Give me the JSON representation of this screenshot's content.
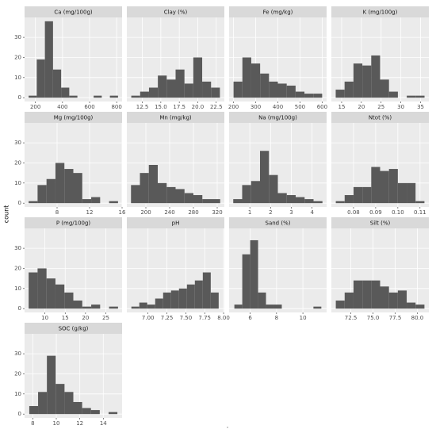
{
  "chart_data": {
    "type": "histogram",
    "y_label": "count",
    "x_label": ".",
    "color": "#595959",
    "grid": true,
    "ylim": [
      -1.9,
      39.9
    ],
    "yticks": [
      0,
      10,
      20,
      30
    ],
    "facets": [
      {
        "title": "Ca (mg/100g)",
        "bins": [
          150,
          210,
          270,
          330,
          390,
          450,
          510,
          570,
          630,
          690,
          750,
          810
        ],
        "counts": [
          1,
          19,
          38,
          14,
          5,
          1,
          0,
          0,
          1,
          0,
          1
        ],
        "xlim": [
          120,
          840
        ],
        "xticks": [
          200,
          400,
          600,
          800
        ]
      },
      {
        "title": "Clay (%)",
        "bins": [
          11.0,
          12.2,
          13.4,
          14.6,
          15.8,
          17.0,
          18.2,
          19.4,
          20.6,
          21.8,
          23.0
        ],
        "counts": [
          1,
          3,
          5,
          11,
          9,
          14,
          7,
          20,
          8,
          5
        ],
        "xlim": [
          10.4,
          23.6
        ],
        "xticks": [
          12.5,
          {
            "value": 15,
            "label": "15.0"
          },
          17.5,
          {
            "value": 20,
            "label": "20.0"
          },
          22.5
        ]
      },
      {
        "title": "Fe (mg/kg)",
        "bins": [
          200,
          240,
          280,
          320,
          360,
          400,
          440,
          480,
          520,
          560,
          600
        ],
        "counts": [
          8,
          20,
          17,
          12,
          8,
          7,
          6,
          3,
          2,
          2
        ],
        "xlim": [
          180,
          620
        ],
        "xticks": [
          200,
          300,
          400,
          500,
          600
        ]
      },
      {
        "title": "K (mg/100g)",
        "bins": [
          13.5,
          15.75,
          18.0,
          20.25,
          22.5,
          24.75,
          27.0,
          29.25,
          31.5,
          33.75,
          36.0
        ],
        "counts": [
          4,
          8,
          17,
          16,
          21,
          9,
          3,
          0,
          1,
          1
        ],
        "xlim": [
          12.4,
          37.1
        ],
        "xticks": [
          15,
          20,
          25,
          30,
          35
        ]
      },
      {
        "title": "Mg (mg/100g)",
        "bins": [
          4.5,
          5.6,
          6.7,
          7.8,
          8.9,
          10.0,
          11.1,
          12.2,
          13.3,
          14.4,
          15.5
        ],
        "counts": [
          1,
          9,
          12,
          20,
          17,
          15,
          2,
          3,
          0,
          1
        ],
        "xlim": [
          4.0,
          16.0
        ],
        "xticks": [
          8,
          12,
          16
        ]
      },
      {
        "title": "Mn (mg/kg)",
        "bins": [
          175,
          190,
          205,
          220,
          235,
          250,
          265,
          280,
          295,
          310,
          325
        ],
        "counts": [
          9,
          15,
          19,
          10,
          8,
          7,
          5,
          4,
          2,
          2
        ],
        "xlim": [
          168,
          332
        ],
        "xticks": [
          200,
          240,
          280,
          320
        ]
      },
      {
        "title": "Na (mg/100g)",
        "bins": [
          0.2,
          0.63,
          1.06,
          1.49,
          1.92,
          2.35,
          2.78,
          3.21,
          3.64,
          4.07,
          4.5
        ],
        "counts": [
          2,
          9,
          11,
          26,
          14,
          5,
          4,
          3,
          2,
          1
        ],
        "xlim": [
          0.0,
          4.7
        ],
        "xticks": [
          1,
          2,
          3,
          4
        ]
      },
      {
        "title": "Ntot (%)",
        "bins": [
          0.072,
          0.076,
          0.08,
          0.084,
          0.088,
          0.092,
          0.096,
          0.1,
          0.104,
          0.108,
          0.112
        ],
        "counts": [
          1,
          4,
          8,
          8,
          18,
          16,
          17,
          10,
          10,
          1
        ],
        "xlim": [
          0.07,
          0.114
        ],
        "xticks": [
          0.08,
          0.09,
          {
            "value": 0.1,
            "label": "0.10"
          },
          0.11
        ]
      },
      {
        "title": "P (mg/100g)",
        "bins": [
          6.0,
          8.2,
          10.4,
          12.6,
          14.8,
          17.0,
          19.2,
          21.4,
          23.6,
          25.8,
          28.0
        ],
        "counts": [
          18,
          20,
          15,
          12,
          8,
          4,
          1,
          2,
          0,
          1
        ],
        "xlim": [
          5.0,
          29.0
        ],
        "xticks": [
          10,
          15,
          20,
          25
        ]
      },
      {
        "title": "pH",
        "bins": [
          6.78,
          6.885,
          6.99,
          7.095,
          7.2,
          7.305,
          7.41,
          7.515,
          7.62,
          7.725,
          7.83,
          7.935
        ],
        "counts": [
          1,
          3,
          2,
          5,
          8,
          9,
          10,
          12,
          14,
          18,
          8
        ],
        "xlim": [
          6.72,
          8.01
        ],
        "xticks": [
          {
            "value": 7,
            "label": "7.00"
          },
          7.25,
          {
            "value": 7.5,
            "label": "7.50"
          },
          7.75,
          {
            "value": 8,
            "label": "8.00"
          }
        ]
      },
      {
        "title": "Sand (%)",
        "bins": [
          4.8,
          5.4,
          6.0,
          6.6,
          7.2,
          7.8,
          8.4,
          9.0,
          9.6,
          10.2,
          10.8,
          11.4
        ],
        "counts": [
          2,
          27,
          34,
          8,
          2,
          2,
          0,
          0,
          0,
          0,
          1
        ],
        "xlim": [
          4.4,
          11.8
        ],
        "xticks": [
          6,
          8,
          10
        ]
      },
      {
        "title": "Silt (%)",
        "bins": [
          70.8,
          71.8,
          72.8,
          73.8,
          74.8,
          75.8,
          76.8,
          77.8,
          78.8,
          79.8,
          80.8
        ],
        "counts": [
          4,
          8,
          14,
          14,
          14,
          11,
          8,
          9,
          3,
          2
        ],
        "xlim": [
          70.3,
          81.3
        ],
        "xticks": [
          72.5,
          {
            "value": 75,
            "label": "75.0"
          },
          77.5,
          {
            "value": 80,
            "label": "80.0"
          }
        ]
      },
      {
        "title": "SOC (g/kg)",
        "bins": [
          7.7,
          8.45,
          9.2,
          9.95,
          10.7,
          11.45,
          12.2,
          12.95,
          13.7,
          14.45,
          15.2
        ],
        "counts": [
          4,
          11,
          29,
          15,
          11,
          6,
          3,
          2,
          0,
          1
        ],
        "xlim": [
          7.3,
          15.6
        ],
        "xticks": [
          8,
          10,
          12,
          14
        ]
      }
    ]
  }
}
